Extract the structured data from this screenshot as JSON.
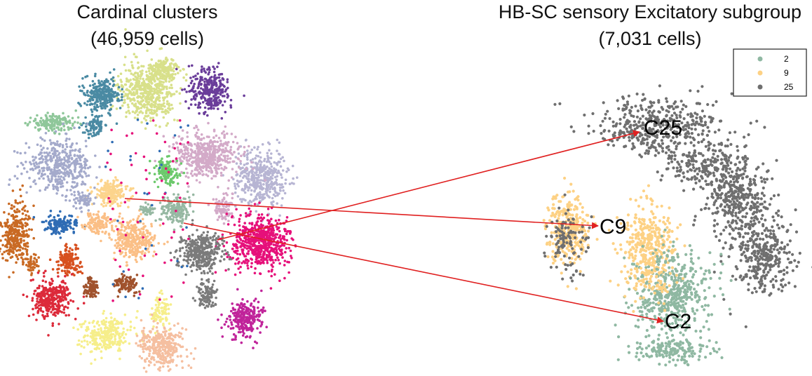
{
  "chart_data": [
    {
      "type": "scatter",
      "title": "Cardinal clusters",
      "subtitle": "(46,959 cells)",
      "xlabel": "",
      "ylabel": "",
      "legend": "none",
      "grid": false,
      "series": [
        {
          "color": "#d8e08a"
        },
        {
          "color": "#4a8aa3"
        },
        {
          "color": "#6a3d9a"
        },
        {
          "color": "#8fc79a"
        },
        {
          "color": "#b7b5d3"
        },
        {
          "color": "#d3aac8"
        },
        {
          "color": "#6cc96c"
        },
        {
          "color": "#fcd48c"
        },
        {
          "color": "#a4aacb"
        },
        {
          "color": "#c96a24"
        },
        {
          "color": "#2f6cb4"
        },
        {
          "color": "#fbbf86"
        },
        {
          "color": "#96b8a2"
        },
        {
          "color": "#e6107a"
        },
        {
          "color": "#7b7b7b"
        },
        {
          "color": "#d7501f"
        },
        {
          "color": "#a0522d"
        },
        {
          "color": "#dc2a3a"
        },
        {
          "color": "#f6ee8a"
        },
        {
          "color": "#f5bfa0"
        },
        {
          "color": "#c0249a"
        }
      ]
    },
    {
      "type": "scatter",
      "title": "HB-SC sensory Excitatory subgroup",
      "subtitle": "(7,031 cells)",
      "xlabel": "",
      "ylabel": "",
      "legend": "top-right",
      "grid": false,
      "series": [
        {
          "name": "2",
          "label": "C2",
          "color": "#8fb8a2"
        },
        {
          "name": "9",
          "label": "C9",
          "color": "#fdd184"
        },
        {
          "name": "25",
          "label": "C25",
          "color": "#6f6f6f"
        }
      ]
    }
  ],
  "arrows": {
    "color": "#e02020",
    "links": [
      {
        "from_cluster": "25",
        "to_label": "C25"
      },
      {
        "from_cluster": "9",
        "to_label": "C9"
      },
      {
        "from_cluster": "2",
        "to_label": "C2"
      }
    ]
  }
}
